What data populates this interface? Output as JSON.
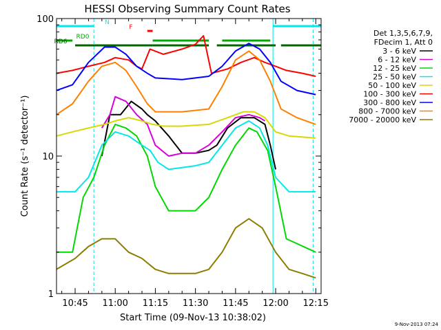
{
  "chart_data": {
    "type": "line",
    "title": "HESSI Observing Summary Count Rates",
    "xlabel": "Start Time (09-Nov-13 10:38:02)",
    "ylabel": "Count Rate (s⁻¹ detector⁻¹)",
    "y_scale": "log",
    "ylim": [
      1,
      100
    ],
    "xlim": [
      "10:38:02",
      "12:17:00"
    ],
    "x_ticks": [
      "10:45",
      "11:00",
      "11:15",
      "11:30",
      "11:45",
      "12:00",
      "12:15"
    ],
    "y_ticks": [
      "1",
      "10",
      "100"
    ],
    "grid": false,
    "legend_position": "right",
    "legend_header": [
      "Det 1,3,5,6,7,9,",
      "FDecim 1, Att 0"
    ],
    "series": [
      {
        "name": "3 - 6 keV",
        "color": "#000000",
        "points": [
          [
            "10:38",
            null
          ],
          [
            "10:55",
            10
          ],
          [
            "10:58",
            20
          ],
          [
            "11:02",
            20
          ],
          [
            "11:06",
            25
          ],
          [
            "11:10",
            22
          ],
          [
            "11:12",
            20
          ],
          [
            "11:15",
            18
          ],
          [
            "11:20",
            14
          ],
          [
            "11:25",
            10.5
          ],
          [
            "11:30",
            10.5
          ],
          [
            "11:35",
            11
          ],
          [
            "11:38",
            12
          ],
          [
            "11:42",
            16
          ],
          [
            "11:47",
            19
          ],
          [
            "11:52",
            19
          ],
          [
            "11:56",
            17
          ],
          [
            "11:58",
            12
          ],
          [
            "12:00",
            8
          ],
          [
            "12:01",
            null
          ]
        ]
      },
      {
        "name": "6 - 12 keV",
        "color": "#d800d8",
        "points": [
          [
            "10:38",
            null
          ],
          [
            "10:55",
            16
          ],
          [
            "10:58",
            20
          ],
          [
            "11:00",
            27
          ],
          [
            "11:04",
            25
          ],
          [
            "11:08",
            20
          ],
          [
            "11:12",
            17
          ],
          [
            "11:15",
            12
          ],
          [
            "11:20",
            10
          ],
          [
            "11:25",
            10.5
          ],
          [
            "11:30",
            10.5
          ],
          [
            "11:35",
            12
          ],
          [
            "11:40",
            15
          ],
          [
            "11:45",
            19
          ],
          [
            "11:50",
            20
          ],
          [
            "11:54",
            19
          ],
          [
            "11:56",
            18
          ],
          [
            "11:57",
            null
          ]
        ]
      },
      {
        "name": "12 - 25 keV",
        "color": "#00d800",
        "points": [
          [
            "10:38",
            2
          ],
          [
            "10:44",
            2
          ],
          [
            "10:48",
            5
          ],
          [
            "10:52",
            7
          ],
          [
            "10:56",
            12
          ],
          [
            "11:00",
            17
          ],
          [
            "11:04",
            16
          ],
          [
            "11:08",
            14
          ],
          [
            "11:12",
            10
          ],
          [
            "11:15",
            6
          ],
          [
            "11:20",
            4
          ],
          [
            "11:30",
            4
          ],
          [
            "11:35",
            5
          ],
          [
            "11:40",
            8
          ],
          [
            "11:45",
            12
          ],
          [
            "11:50",
            16
          ],
          [
            "11:53",
            15
          ],
          [
            "11:57",
            11
          ],
          [
            "12:00",
            6
          ],
          [
            "12:04",
            2.5
          ],
          [
            "12:15",
            2
          ]
        ]
      },
      {
        "name": "25 - 50 keV",
        "color": "#00e8e8",
        "points": [
          [
            "10:38",
            5.5
          ],
          [
            "10:45",
            5.5
          ],
          [
            "10:50",
            7
          ],
          [
            "10:55",
            12
          ],
          [
            "11:00",
            15
          ],
          [
            "11:05",
            14
          ],
          [
            "11:10",
            12
          ],
          [
            "11:13",
            11
          ],
          [
            "11:16",
            9
          ],
          [
            "11:20",
            8
          ],
          [
            "11:30",
            8.5
          ],
          [
            "11:35",
            9
          ],
          [
            "11:40",
            12
          ],
          [
            "11:45",
            16
          ],
          [
            "11:50",
            18
          ],
          [
            "11:54",
            16
          ],
          [
            "11:57",
            12
          ],
          [
            "12:00",
            7
          ],
          [
            "12:05",
            5.5
          ],
          [
            "12:15",
            5.5
          ]
        ]
      },
      {
        "name": "50 - 100 keV",
        "color": "#d8d800",
        "points": [
          [
            "10:38",
            14
          ],
          [
            "10:44",
            15
          ],
          [
            "10:50",
            16
          ],
          [
            "10:56",
            17
          ],
          [
            "11:00",
            18
          ],
          [
            "11:05",
            19
          ],
          [
            "11:10",
            18
          ],
          [
            "11:14",
            17
          ],
          [
            "11:18",
            16.5
          ],
          [
            "11:25",
            16.5
          ],
          [
            "11:35",
            17
          ],
          [
            "11:42",
            19
          ],
          [
            "11:48",
            21
          ],
          [
            "11:52",
            21
          ],
          [
            "11:56",
            19
          ],
          [
            "12:00",
            15
          ],
          [
            "12:05",
            14
          ],
          [
            "12:15",
            13.5
          ]
        ]
      },
      {
        "name": "100 - 300 keV",
        "color": "#ff0000",
        "points": [
          [
            "10:38",
            40
          ],
          [
            "10:44",
            42
          ],
          [
            "10:50",
            45
          ],
          [
            "10:56",
            48
          ],
          [
            "11:00",
            52
          ],
          [
            "11:05",
            50
          ],
          [
            "11:08",
            45
          ],
          [
            "11:10",
            43
          ],
          [
            "11:13",
            60
          ],
          [
            "11:18",
            55
          ],
          [
            "11:25",
            60
          ],
          [
            "11:30",
            65
          ],
          [
            "11:33",
            75
          ],
          [
            "11:36",
            40
          ],
          [
            "11:42",
            43
          ],
          [
            "11:47",
            48
          ],
          [
            "11:52",
            52
          ],
          [
            "11:56",
            48
          ],
          [
            "12:00",
            45
          ],
          [
            "12:04",
            42
          ],
          [
            "12:10",
            40
          ],
          [
            "12:15",
            38
          ]
        ]
      },
      {
        "name": "300 - 800 keV",
        "color": "#0000ff",
        "points": [
          [
            "10:38",
            30
          ],
          [
            "10:44",
            33
          ],
          [
            "10:50",
            48
          ],
          [
            "10:56",
            62
          ],
          [
            "11:00",
            62
          ],
          [
            "11:04",
            55
          ],
          [
            "11:08",
            45
          ],
          [
            "11:12",
            40
          ],
          [
            "11:15",
            37
          ],
          [
            "11:25",
            36
          ],
          [
            "11:35",
            38
          ],
          [
            "11:40",
            45
          ],
          [
            "11:45",
            58
          ],
          [
            "11:50",
            66
          ],
          [
            "11:54",
            60
          ],
          [
            "11:58",
            48
          ],
          [
            "12:02",
            35
          ],
          [
            "12:08",
            30
          ],
          [
            "12:15",
            28
          ]
        ]
      },
      {
        "name": "800 - 7000 keV",
        "color": "#ff8000",
        "points": [
          [
            "10:38",
            20
          ],
          [
            "10:44",
            24
          ],
          [
            "10:50",
            35
          ],
          [
            "10:55",
            45
          ],
          [
            "11:00",
            48
          ],
          [
            "11:04",
            42
          ],
          [
            "11:08",
            32
          ],
          [
            "11:12",
            24
          ],
          [
            "11:15",
            21
          ],
          [
            "11:25",
            21
          ],
          [
            "11:35",
            22
          ],
          [
            "11:40",
            32
          ],
          [
            "11:45",
            50
          ],
          [
            "11:50",
            58
          ],
          [
            "11:54",
            50
          ],
          [
            "11:58",
            35
          ],
          [
            "12:02",
            22
          ],
          [
            "12:08",
            19
          ],
          [
            "12:15",
            17
          ]
        ]
      },
      {
        "name": "7000 - 20000 keV",
        "color": "#8b7d00",
        "points": [
          [
            "10:38",
            1.5
          ],
          [
            "10:45",
            1.8
          ],
          [
            "10:50",
            2.2
          ],
          [
            "10:55",
            2.5
          ],
          [
            "11:00",
            2.5
          ],
          [
            "11:05",
            2
          ],
          [
            "11:10",
            1.8
          ],
          [
            "11:15",
            1.5
          ],
          [
            "11:20",
            1.4
          ],
          [
            "11:30",
            1.4
          ],
          [
            "11:35",
            1.5
          ],
          [
            "11:40",
            2
          ],
          [
            "11:45",
            3
          ],
          [
            "11:50",
            3.5
          ],
          [
            "11:55",
            3
          ],
          [
            "12:00",
            2
          ],
          [
            "12:05",
            1.5
          ],
          [
            "12:10",
            1.4
          ],
          [
            "12:15",
            1.3
          ]
        ]
      }
    ],
    "flags": [
      {
        "label": "N",
        "color": "#00e8e8",
        "segments": [
          [
            "10:38",
            "10:52"
          ],
          [
            "11:59",
            "12:17"
          ]
        ],
        "markers": [
          "10:52",
          "11:59",
          "12:14"
        ]
      },
      {
        "label": "F",
        "color": "#ff0000",
        "segments": [
          [
            "11:12",
            "11:14"
          ]
        ],
        "markers": []
      },
      {
        "label": "RD0",
        "color": "#00aa00",
        "segments": [
          [
            "10:38",
            "10:44"
          ],
          [
            "11:14",
            "11:35"
          ],
          [
            "11:40",
            "11:58"
          ]
        ],
        "markers": []
      },
      {
        "label": "RD6",
        "color": "#006400",
        "segments": [
          [
            "10:45",
            "11:14"
          ],
          [
            "11:14",
            "11:35"
          ],
          [
            "11:38",
            "12:00"
          ],
          [
            "12:02",
            "12:17"
          ]
        ],
        "markers": []
      }
    ]
  },
  "footer": {
    "timestamp": "9-Nov-2013 07:24"
  }
}
